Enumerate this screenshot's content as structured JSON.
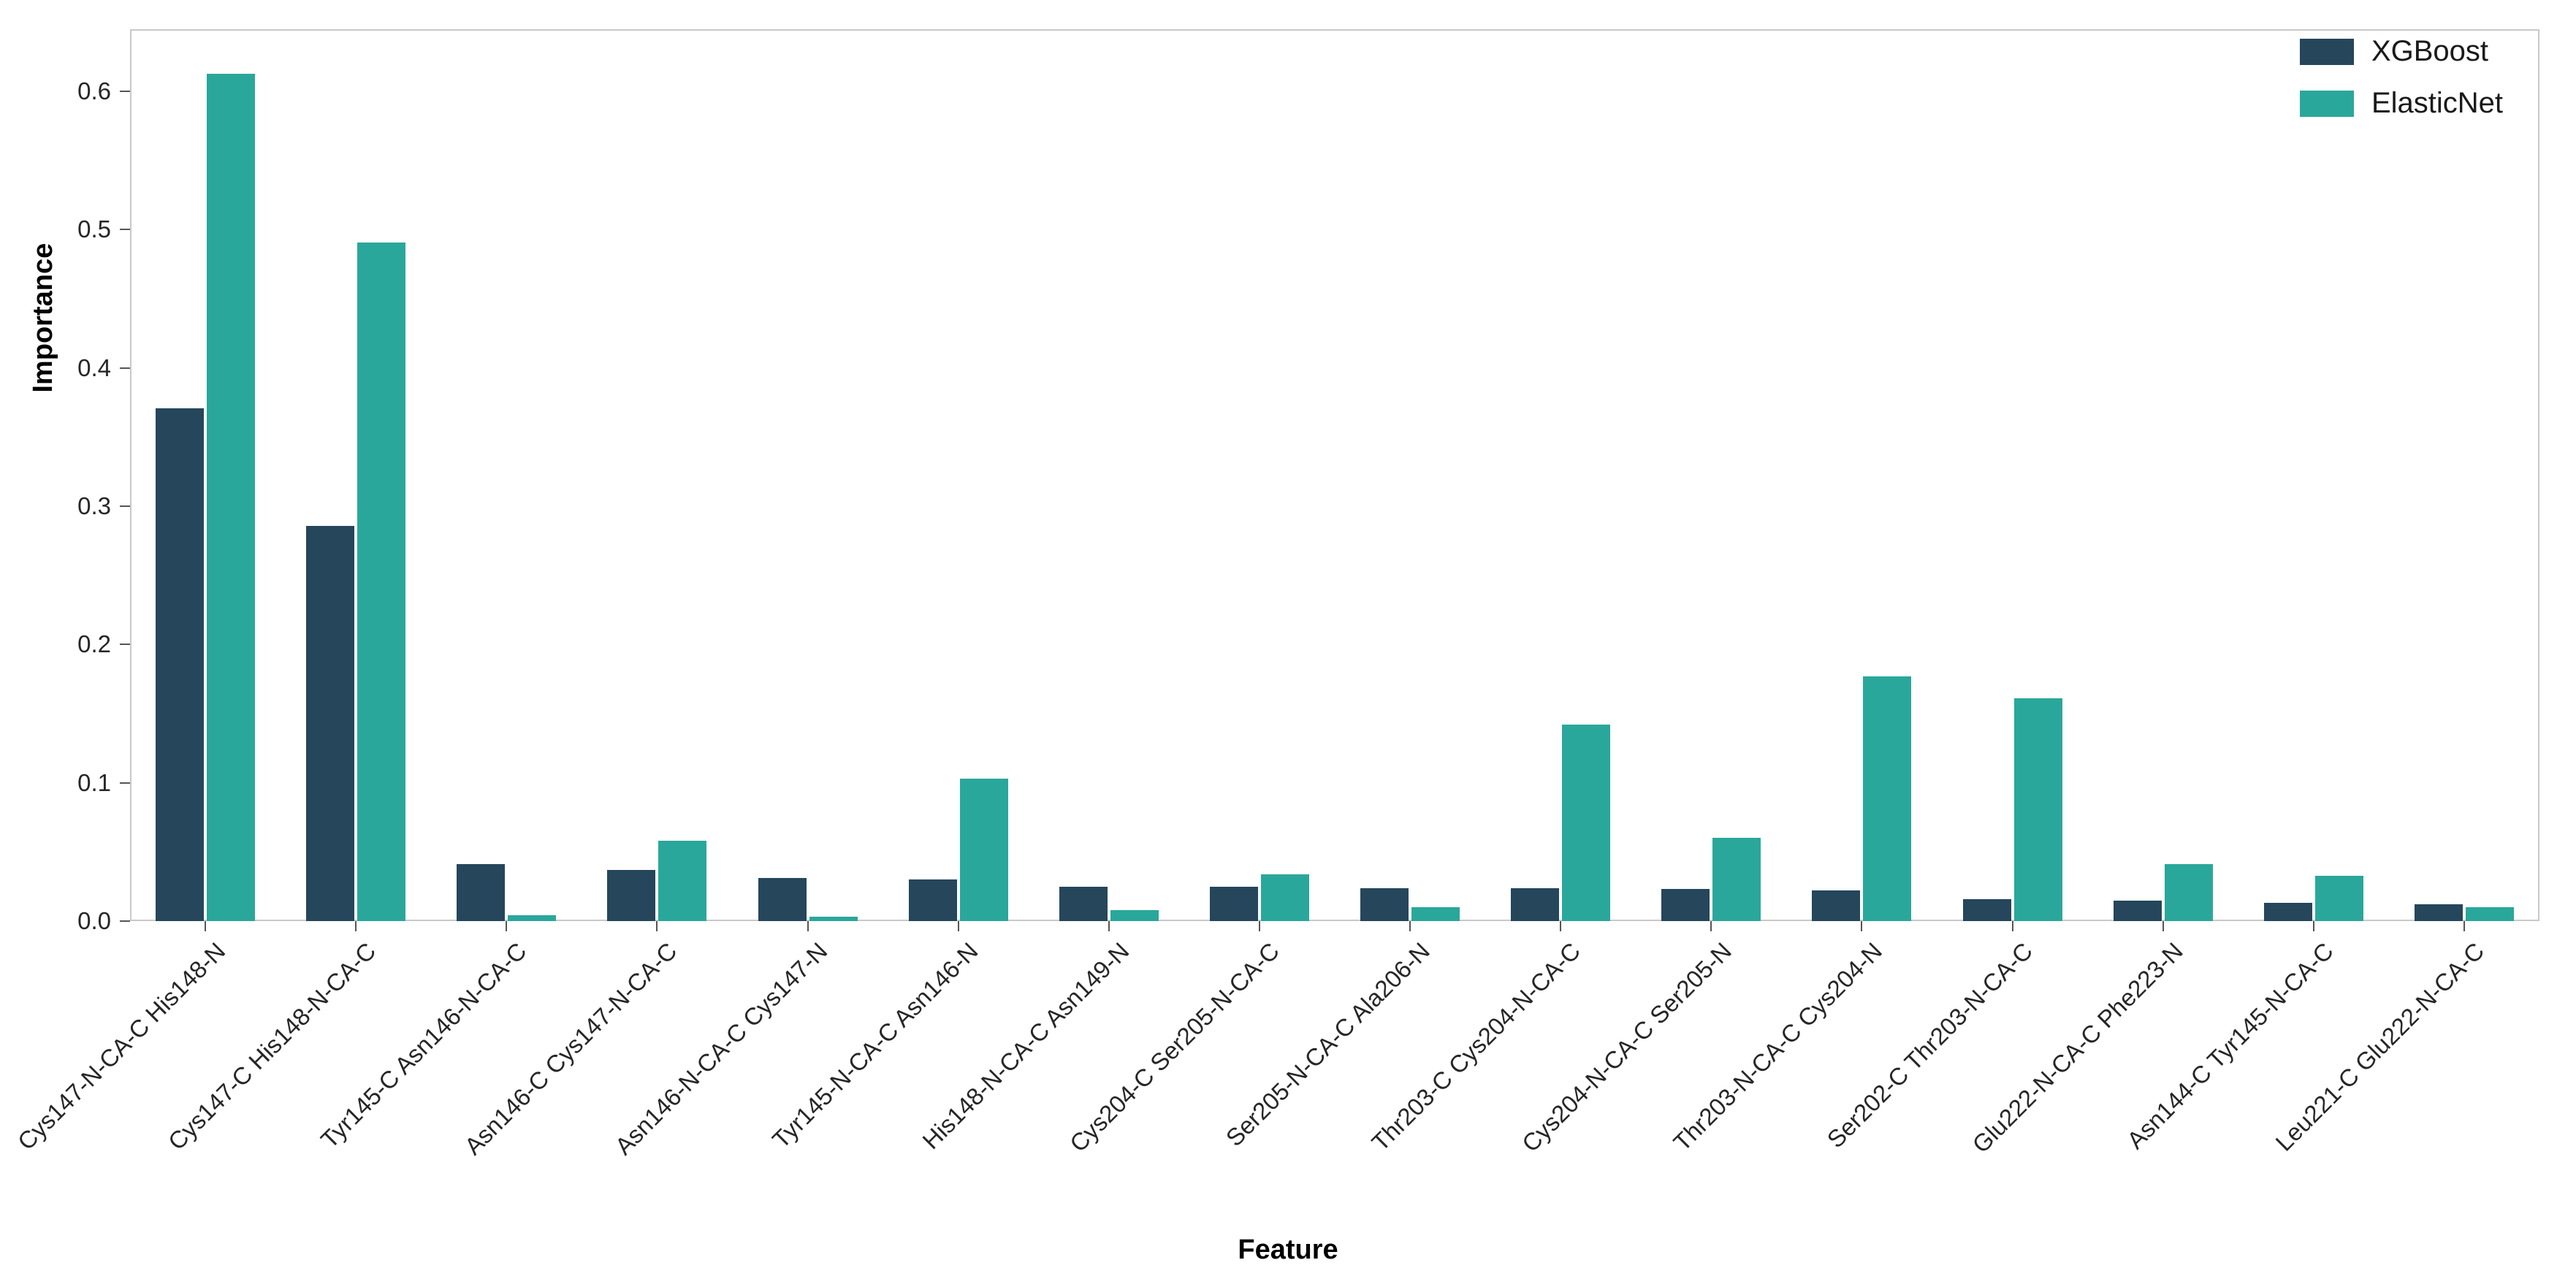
{
  "chart_data": {
    "type": "bar",
    "title": "",
    "xlabel": "Feature",
    "ylabel": "Importance",
    "ylim": [
      0,
      0.645
    ],
    "yticks": [
      0.0,
      0.1,
      0.2,
      0.3,
      0.4,
      0.5,
      0.6
    ],
    "grid": false,
    "legend_position": "upper right",
    "categories": [
      "Cys147-N-CA-C His148-N",
      "Cys147-C His148-N-CA-C",
      "Tyr145-C Asn146-N-CA-C",
      "Asn146-C Cys147-N-CA-C",
      "Asn146-N-CA-C Cys147-N",
      "Tyr145-N-CA-C Asn146-N",
      "His148-N-CA-C Asn149-N",
      "Cys204-C Ser205-N-CA-C",
      "Ser205-N-CA-C Ala206-N",
      "Thr203-C Cys204-N-CA-C",
      "Cys204-N-CA-C Ser205-N",
      "Thr203-N-CA-C Cys204-N",
      "Ser202-C Thr203-N-CA-C",
      "Glu222-N-CA-C Phe223-N",
      "Asn144-C Tyr145-N-CA-C",
      "Leu221-C Glu222-N-CA-C"
    ],
    "series": [
      {
        "name": "XGBoost",
        "color": "#25465b",
        "values": [
          0.371,
          0.286,
          0.041,
          0.037,
          0.031,
          0.03,
          0.025,
          0.025,
          0.024,
          0.024,
          0.023,
          0.022,
          0.016,
          0.015,
          0.013,
          0.012
        ]
      },
      {
        "name": "ElasticNet",
        "color": "#2aa79b",
        "values": [
          0.613,
          0.491,
          0.004,
          0.058,
          0.003,
          0.103,
          0.008,
          0.034,
          0.01,
          0.142,
          0.06,
          0.177,
          0.161,
          0.041,
          0.033,
          0.01
        ]
      }
    ]
  }
}
